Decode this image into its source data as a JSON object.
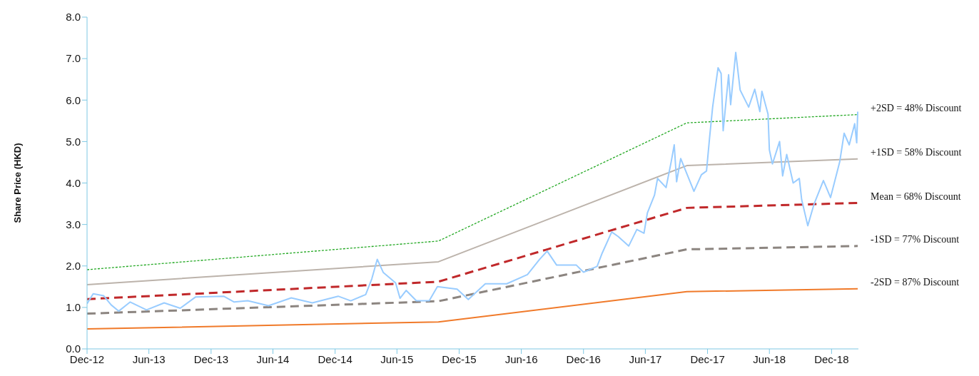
{
  "chart_data": {
    "type": "line",
    "ylabel": "Share Price (HKD)",
    "xlim": [
      "2012-12-01",
      "2019-02-18"
    ],
    "xticks": [
      {
        "value": "2012-12-01",
        "label": "Dec-12"
      },
      {
        "value": "2013-06-01",
        "label": "Jun-13"
      },
      {
        "value": "2013-12-01",
        "label": "Dec-13"
      },
      {
        "value": "2014-06-01",
        "label": "Jun-14"
      },
      {
        "value": "2014-12-01",
        "label": "Dec-14"
      },
      {
        "value": "2015-06-01",
        "label": "Jun-15"
      },
      {
        "value": "2015-12-01",
        "label": "Dec-15"
      },
      {
        "value": "2016-06-01",
        "label": "Jun-16"
      },
      {
        "value": "2016-12-01",
        "label": "Dec-16"
      },
      {
        "value": "2017-06-01",
        "label": "Jun-17"
      },
      {
        "value": "2017-12-01",
        "label": "Dec-17"
      },
      {
        "value": "2018-06-01",
        "label": "Jun-18"
      },
      {
        "value": "2018-12-01",
        "label": "Dec-18"
      }
    ],
    "ylim": [
      0,
      8
    ],
    "yticks": [
      {
        "value": 0,
        "label": "0.0"
      },
      {
        "value": 1,
        "label": "1.0"
      },
      {
        "value": 2,
        "label": "2.0"
      },
      {
        "value": 3,
        "label": "3.0"
      },
      {
        "value": 4,
        "label": "4.0"
      },
      {
        "value": 5,
        "label": "5.0"
      },
      {
        "value": 6,
        "label": "6.0"
      },
      {
        "value": 7,
        "label": "7.0"
      },
      {
        "value": 8,
        "label": "8.0"
      }
    ],
    "grid": false,
    "legend": false,
    "marker": "none",
    "series": [
      {
        "name": "+2SD = 48% Discount",
        "color": "#22a822",
        "line_style": "dotted",
        "x": [
          "2012-12-01",
          "2015-10-01",
          "2017-10-01",
          "2019-02-16"
        ],
        "values": [
          1.91,
          2.6,
          5.45,
          5.65
        ]
      },
      {
        "name": "+1SD = 58% Discount",
        "color": "#bcb3ab",
        "line_style": "solid",
        "x": [
          "2012-12-01",
          "2015-10-01",
          "2017-10-01",
          "2019-02-16"
        ],
        "values": [
          1.55,
          2.1,
          4.42,
          4.58
        ]
      },
      {
        "name": "Mean = 68% Discount",
        "color": "#c0282a",
        "line_style": "dashed",
        "x": [
          "2012-12-01",
          "2015-10-01",
          "2017-10-01",
          "2019-02-16"
        ],
        "values": [
          1.2,
          1.62,
          3.4,
          3.52
        ]
      },
      {
        "name": "-1SD = 77% Discount",
        "color": "#8c8580",
        "line_style": "dashed",
        "x": [
          "2012-12-01",
          "2015-10-01",
          "2017-10-01",
          "2019-02-16"
        ],
        "values": [
          0.85,
          1.15,
          2.4,
          2.48
        ]
      },
      {
        "name": "-2SD = 87% Discount",
        "color": "#f07a2a",
        "line_style": "solid",
        "x": [
          "2012-12-01",
          "2015-10-01",
          "2017-10-01",
          "2019-02-16"
        ],
        "values": [
          0.48,
          0.65,
          1.38,
          1.45
        ]
      },
      {
        "color": "#99ccff",
        "line_style": "solid",
        "x": [
          "2012-12-01",
          "2012-12-19",
          "2013-01-19",
          "2013-02-10",
          "2013-03-04",
          "2013-04-07",
          "2013-05-25",
          "2013-07-16",
          "2013-09-01",
          "2013-10-16",
          "2014-01-07",
          "2014-02-07",
          "2014-03-19",
          "2014-05-19",
          "2014-07-25",
          "2014-09-25",
          "2014-12-10",
          "2015-01-16",
          "2015-03-01",
          "2015-03-19",
          "2015-04-04",
          "2015-04-22",
          "2015-05-28",
          "2015-06-10",
          "2015-06-28",
          "2015-07-28",
          "2015-09-04",
          "2015-09-28",
          "2015-11-25",
          "2015-12-28",
          "2016-02-16",
          "2016-04-19",
          "2016-06-19",
          "2016-07-25",
          "2016-08-16",
          "2016-09-13",
          "2016-11-10",
          "2016-12-01",
          "2017-01-10",
          "2017-01-25",
          "2017-02-22",
          "2017-03-13",
          "2017-04-13",
          "2017-05-07",
          "2017-05-28",
          "2017-06-07",
          "2017-06-28",
          "2017-07-07",
          "2017-08-01",
          "2017-08-16",
          "2017-08-25",
          "2017-09-01",
          "2017-09-13",
          "2017-10-22",
          "2017-11-13",
          "2017-11-28",
          "2017-12-07",
          "2017-12-16",
          "2018-01-01",
          "2018-01-10",
          "2018-01-16",
          "2018-02-01",
          "2018-02-07",
          "2018-02-22",
          "2018-03-07",
          "2018-04-01",
          "2018-04-19",
          "2018-05-04",
          "2018-05-10",
          "2018-05-28",
          "2018-06-01",
          "2018-06-10",
          "2018-07-01",
          "2018-07-10",
          "2018-07-22",
          "2018-08-10",
          "2018-08-28",
          "2018-09-04",
          "2018-09-22",
          "2018-10-10",
          "2018-11-07",
          "2018-11-28",
          "2018-12-25",
          "2019-01-07",
          "2019-01-22",
          "2019-02-07",
          "2019-02-13",
          "2019-02-16"
        ],
        "values": [
          1.09,
          1.33,
          1.28,
          1.06,
          0.91,
          1.13,
          0.94,
          1.11,
          0.98,
          1.25,
          1.27,
          1.13,
          1.16,
          1.04,
          1.23,
          1.11,
          1.27,
          1.16,
          1.31,
          1.69,
          2.16,
          1.84,
          1.59,
          1.22,
          1.41,
          1.16,
          1.16,
          1.5,
          1.44,
          1.19,
          1.57,
          1.57,
          1.79,
          2.16,
          2.36,
          2.02,
          2.02,
          1.85,
          1.99,
          2.31,
          2.82,
          2.71,
          2.48,
          2.88,
          2.79,
          3.28,
          3.71,
          4.11,
          3.89,
          4.51,
          4.92,
          4.03,
          4.59,
          3.8,
          4.2,
          4.29,
          5.09,
          5.83,
          6.78,
          6.64,
          5.26,
          6.61,
          5.89,
          7.15,
          6.24,
          5.83,
          6.26,
          5.72,
          6.21,
          5.66,
          4.8,
          4.46,
          5.0,
          4.17,
          4.69,
          4.0,
          4.11,
          3.6,
          2.97,
          3.48,
          4.06,
          3.65,
          4.51,
          5.2,
          4.92,
          5.43,
          4.97,
          5.72
        ]
      }
    ]
  }
}
